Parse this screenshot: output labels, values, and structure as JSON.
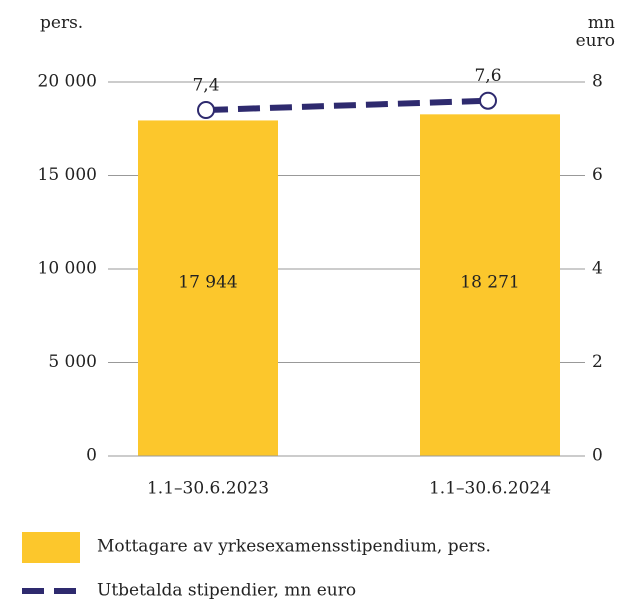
{
  "chart_data": {
    "type": "bar",
    "y_label": "pers.",
    "y2_label": "mn euro",
    "categories": [
      "1.1–30.6.2023",
      "1.1–30.6.2024"
    ],
    "series": [
      {
        "name": "Mottagare av yrkesexamensstipendium, pers.",
        "color": "#fcc72c",
        "type": "bar",
        "values": [
          17944,
          18271
        ],
        "value_labels": [
          "17 944",
          "18 271"
        ]
      },
      {
        "name": "Utbetalda stipendier, mn euro",
        "color": "#2e2a6e",
        "type": "line",
        "axis": "y2",
        "values": [
          7.4,
          7.6
        ],
        "value_labels": [
          "7,4",
          "7,6"
        ]
      }
    ],
    "ylim": [
      0,
      20000
    ],
    "yticks": [
      {
        "value": 0,
        "label": "0"
      },
      {
        "value": 5000,
        "label": "5 000"
      },
      {
        "value": 10000,
        "label": "10 000"
      },
      {
        "value": 15000,
        "label": "15 000"
      },
      {
        "value": 20000,
        "label": "20 000"
      }
    ],
    "y2lim": [
      0,
      8
    ],
    "y2ticks": [
      0,
      2,
      4,
      6,
      8
    ],
    "grid": true
  }
}
